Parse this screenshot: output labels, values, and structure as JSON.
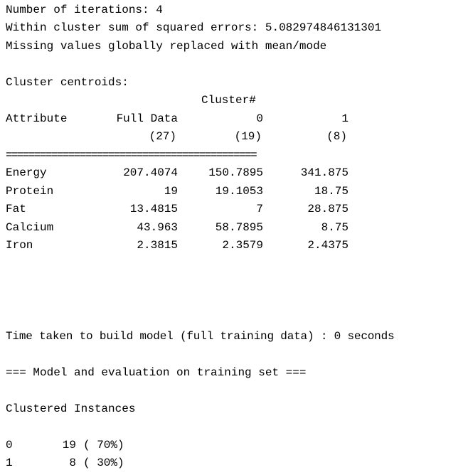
{
  "header": {
    "iterations": "Number of iterations: 4",
    "sse": "Within cluster sum of squared errors: 5.082974846131301",
    "missing": "Missing values globally replaced with mean/mode"
  },
  "centroids": {
    "title": "Cluster centroids:",
    "cluster_label": "Cluster#",
    "attribute_header": "Attribute",
    "columns": [
      {
        "name": "Full Data",
        "count": "(27)"
      },
      {
        "name": "0",
        "count": "(19)"
      },
      {
        "name": "1",
        "count": "(8)"
      }
    ],
    "separator": "============================================",
    "rows": [
      {
        "attribute": "Energy",
        "values": [
          "207.4074",
          "150.7895",
          "341.875"
        ]
      },
      {
        "attribute": "Protein",
        "values": [
          "19",
          "19.1053",
          "18.75"
        ]
      },
      {
        "attribute": "Fat",
        "values": [
          "13.4815",
          "7",
          "28.875"
        ]
      },
      {
        "attribute": "Calcium",
        "values": [
          "43.963",
          "58.7895",
          "8.75"
        ]
      },
      {
        "attribute": "Iron",
        "values": [
          "2.3815",
          "2.3579",
          "2.4375"
        ]
      }
    ]
  },
  "time_taken": "Time taken to build model (full training data) : 0 seconds",
  "evaluation_header": "=== Model and evaluation on training set ===",
  "clustered": {
    "title": "Clustered Instances",
    "rows": [
      {
        "cluster": "0",
        "count": "19",
        "percent": "( 70%)"
      },
      {
        "cluster": "1",
        "count": "8",
        "percent": "( 30%)"
      }
    ]
  }
}
